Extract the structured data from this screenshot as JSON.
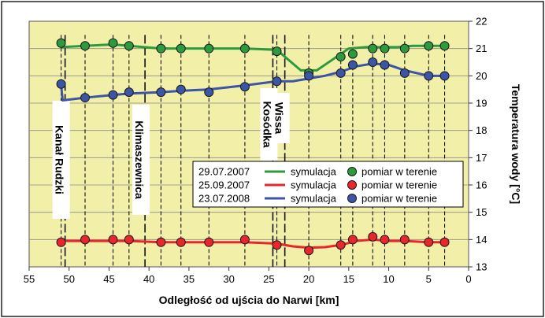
{
  "chart_data": {
    "type": "line",
    "xlabel": "Odległość od ujścia do Narwi [km]",
    "ylabel": "Temperatura wody [°C]",
    "xlim": [
      55,
      0
    ],
    "ylim": [
      13,
      22
    ],
    "x_ticks": [
      55,
      50,
      45,
      40,
      35,
      30,
      25,
      20,
      15,
      10,
      5,
      0
    ],
    "y_ticks": [
      13,
      14,
      15,
      16,
      17,
      18,
      19,
      20,
      21,
      22
    ],
    "grid": "horizontal",
    "legend_position": "center-right",
    "station_x": [
      51,
      48,
      44.5,
      42.5,
      38.5,
      36,
      32.5,
      28,
      24,
      20,
      16,
      14.5,
      12,
      10.5,
      8,
      5,
      3
    ],
    "tributaries": [
      {
        "name": "Kanał Rudzki",
        "x": 50.5
      },
      {
        "name": "Klimaszewnica",
        "x": 40.5
      },
      {
        "name": "Kosódka",
        "x": 24.5
      },
      {
        "name": "Wissa",
        "x": 23
      }
    ],
    "series": [
      {
        "name": "29.07.2007",
        "color": "#2e9a3e",
        "line_label": "symulacja",
        "marker_label": "pomiar w terenie",
        "simulation": {
          "x": [
            51,
            48,
            44.5,
            42.5,
            38.5,
            36,
            32.5,
            28,
            24,
            23,
            21,
            19,
            17,
            15,
            13,
            11,
            9,
            7,
            5,
            3
          ],
          "y": [
            21.05,
            21.1,
            21.15,
            21.1,
            21.0,
            21.0,
            21.0,
            21.0,
            20.95,
            20.7,
            20.2,
            20.2,
            20.6,
            21.0,
            21.05,
            21.05,
            21.05,
            21.1,
            21.1,
            21.1
          ]
        },
        "measurements": {
          "x": [
            51,
            48,
            44.5,
            42.5,
            38.5,
            36,
            32.5,
            28,
            24,
            20,
            16,
            14.5,
            12,
            10.5,
            8,
            5,
            3
          ],
          "y": [
            21.2,
            21.1,
            21.2,
            21.1,
            21.0,
            21.0,
            21.0,
            21.0,
            20.9,
            20.1,
            20.7,
            20.8,
            21.0,
            21.0,
            21.0,
            21.1,
            21.1
          ]
        }
      },
      {
        "name": "25.09.2007",
        "color": "#e8262b",
        "line_label": "symulacja",
        "marker_label": "pomiar w terenie",
        "simulation": {
          "x": [
            51,
            48,
            44.5,
            42.5,
            38.5,
            36,
            32.5,
            28,
            24,
            22,
            20,
            18,
            16,
            14,
            12,
            10,
            8,
            5,
            3
          ],
          "y": [
            13.95,
            13.95,
            13.95,
            13.95,
            13.9,
            13.9,
            13.9,
            13.9,
            13.85,
            13.75,
            13.7,
            13.72,
            13.8,
            13.95,
            14.0,
            13.95,
            13.95,
            13.9,
            13.9
          ]
        },
        "measurements": {
          "x": [
            51,
            48,
            44.5,
            42.5,
            38.5,
            36,
            32.5,
            28,
            24,
            20,
            16,
            14.5,
            12,
            10.5,
            8,
            5,
            3
          ],
          "y": [
            13.9,
            14.0,
            14.0,
            14.0,
            13.9,
            13.9,
            13.9,
            14.0,
            13.8,
            13.6,
            13.8,
            14.0,
            14.1,
            14.0,
            14.0,
            13.9,
            13.9
          ]
        }
      },
      {
        "name": "23.07.2008",
        "color": "#3d55a5",
        "line_label": "symulacja",
        "marker_label": "pomiar w terenie",
        "simulation": {
          "x": [
            51,
            50.8,
            48,
            44.5,
            42.5,
            38.5,
            36,
            32.5,
            28,
            24,
            22,
            20,
            18,
            16,
            14,
            12,
            10,
            8,
            5,
            3
          ],
          "y": [
            19.65,
            19.1,
            19.2,
            19.3,
            19.35,
            19.4,
            19.45,
            19.5,
            19.65,
            19.8,
            19.8,
            19.9,
            20.0,
            20.15,
            20.35,
            20.45,
            20.4,
            20.2,
            20.0,
            20.0
          ]
        },
        "measurements": {
          "x": [
            51,
            48,
            44.5,
            42.5,
            38.5,
            36,
            32.5,
            28,
            24,
            20,
            16,
            14.5,
            12,
            10.5,
            8,
            5,
            3
          ],
          "y": [
            19.7,
            19.2,
            19.3,
            19.4,
            19.4,
            19.5,
            19.4,
            19.6,
            19.8,
            20.0,
            20.1,
            20.4,
            20.5,
            20.4,
            20.1,
            20.0,
            20.0
          ]
        }
      }
    ]
  }
}
